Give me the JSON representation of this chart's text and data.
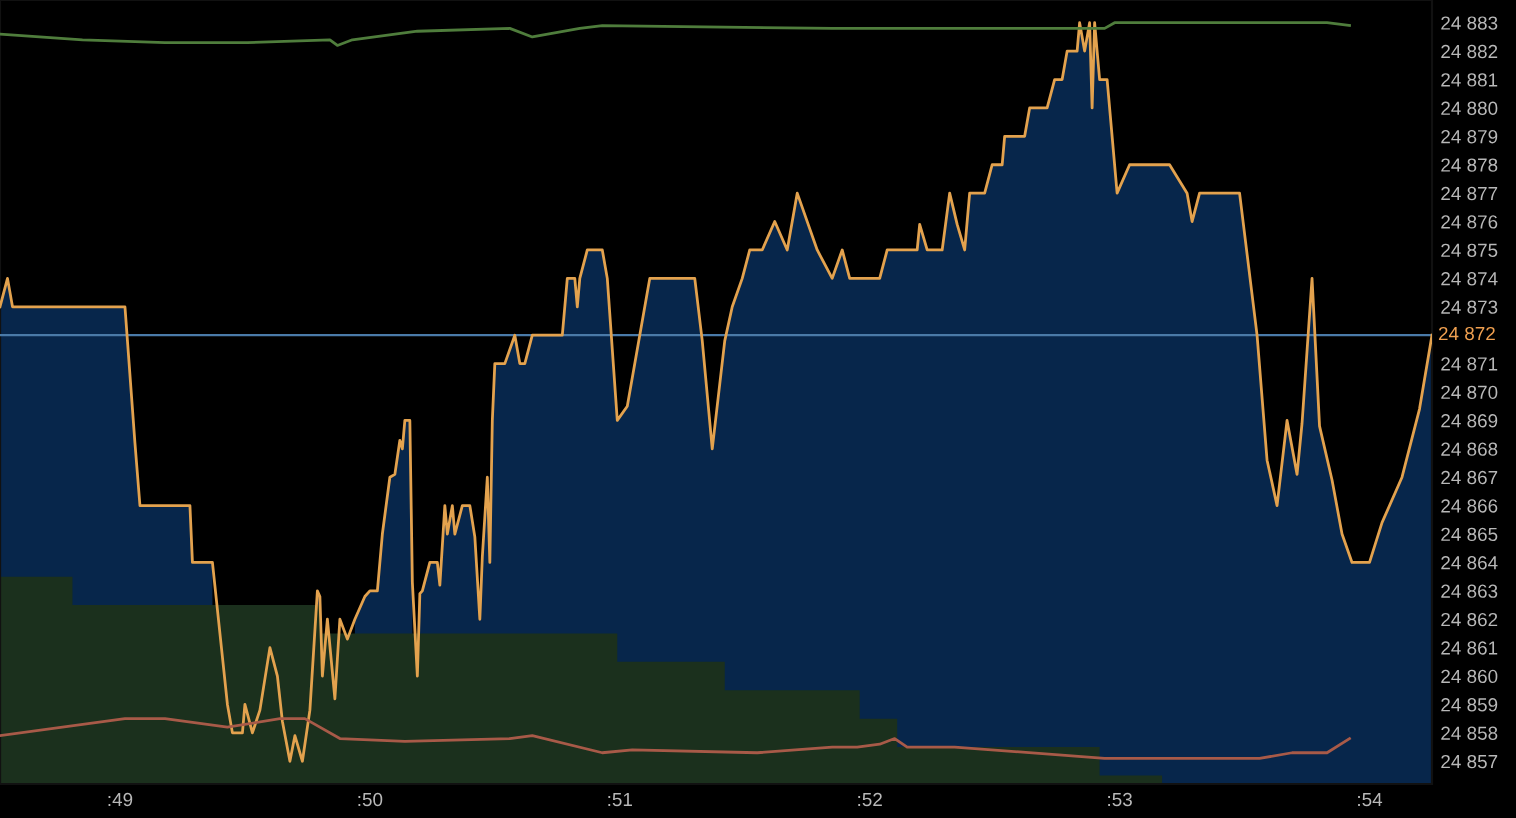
{
  "chart_data": {
    "type": "line",
    "xlim": [
      48.52,
      54.25
    ],
    "xticks": [
      {
        "value": 49,
        "label": ":49"
      },
      {
        "value": 50,
        "label": ":50"
      },
      {
        "value": 51,
        "label": ":51"
      },
      {
        "value": 52,
        "label": ":52"
      },
      {
        "value": 53,
        "label": ":53"
      },
      {
        "value": 54,
        "label": ":54"
      }
    ],
    "ylim": [
      24856.2,
      24883.8
    ],
    "yticks": [
      {
        "value": 24857,
        "label": "24 857"
      },
      {
        "value": 24858,
        "label": "24 858"
      },
      {
        "value": 24859,
        "label": "24 859"
      },
      {
        "value": 24860,
        "label": "24 860"
      },
      {
        "value": 24861,
        "label": "24 861"
      },
      {
        "value": 24862,
        "label": "24 862"
      },
      {
        "value": 24863,
        "label": "24 863"
      },
      {
        "value": 24864,
        "label": "24 864"
      },
      {
        "value": 24865,
        "label": "24 865"
      },
      {
        "value": 24866,
        "label": "24 866"
      },
      {
        "value": 24867,
        "label": "24 867"
      },
      {
        "value": 24868,
        "label": "24 868"
      },
      {
        "value": 24869,
        "label": "24 869"
      },
      {
        "value": 24870,
        "label": "24 870"
      },
      {
        "value": 24871,
        "label": "24 871"
      },
      {
        "value": 24873,
        "label": "24 873"
      },
      {
        "value": 24874,
        "label": "24 874"
      },
      {
        "value": 24875,
        "label": "24 875"
      },
      {
        "value": 24876,
        "label": "24 876"
      },
      {
        "value": 24877,
        "label": "24 877"
      },
      {
        "value": 24878,
        "label": "24 878"
      },
      {
        "value": 24879,
        "label": "24 879"
      },
      {
        "value": 24880,
        "label": "24 880"
      },
      {
        "value": 24881,
        "label": "24 881"
      },
      {
        "value": 24882,
        "label": "24 882"
      },
      {
        "value": 24883,
        "label": "24 883"
      }
    ],
    "grid": false,
    "legend": false,
    "ref_lines": [
      {
        "axis": "y",
        "value": 24872,
        "label": "24 872",
        "color": "#4a7aa8"
      }
    ],
    "series": [
      {
        "type": "area",
        "color": "#07264b",
        "x": [
          48.52,
          48.55,
          48.57,
          49.02,
          49.06,
          49.08,
          49.28,
          49.29,
          49.37,
          49.43,
          49.45,
          49.49,
          49.5,
          49.53,
          49.56,
          49.6,
          49.63,
          49.65,
          49.68,
          49.7,
          49.73,
          49.76,
          49.79,
          49.8,
          49.81,
          49.83,
          49.86,
          49.88,
          49.91,
          49.94,
          49.98,
          50.0,
          50.03,
          50.05,
          50.08,
          50.1,
          50.12,
          50.13,
          50.14,
          50.16,
          50.17,
          50.19,
          50.2,
          50.21,
          50.24,
          50.27,
          50.28,
          50.3,
          50.31,
          50.33,
          50.34,
          50.37,
          50.4,
          50.42,
          50.44,
          50.45,
          50.47,
          50.48,
          50.49,
          50.5,
          50.54,
          50.58,
          50.6,
          50.62,
          50.65,
          50.77,
          50.79,
          50.82,
          50.83,
          50.84,
          50.87,
          50.93,
          50.95,
          50.99,
          51.03,
          51.1,
          51.12,
          51.3,
          51.33,
          51.37,
          51.42,
          51.45,
          51.49,
          51.52,
          51.57,
          51.62,
          51.67,
          51.71,
          51.79,
          51.85,
          51.89,
          51.92,
          52.04,
          52.07,
          52.19,
          52.2,
          52.23,
          52.29,
          52.32,
          52.35,
          52.38,
          52.4,
          52.46,
          52.49,
          52.53,
          52.54,
          52.62,
          52.64,
          52.71,
          52.74,
          52.77,
          52.79,
          52.83,
          52.84,
          52.86,
          52.88,
          52.89,
          52.9,
          52.92,
          52.95,
          52.99,
          53.04,
          53.2,
          53.27,
          53.29,
          53.32,
          53.48,
          53.55,
          53.59,
          53.63,
          53.67,
          53.71,
          53.73,
          53.77,
          53.8,
          53.85,
          53.89,
          53.93,
          54.0,
          54.05,
          54.13,
          54.2,
          54.25
        ],
        "values": [
          24873,
          24874,
          24873,
          24873,
          24868.2,
          24866,
          24866,
          24864,
          24864,
          null,
          null,
          null,
          null,
          null,
          null,
          null,
          null,
          null,
          null,
          null,
          null,
          null,
          24863,
          24862.8,
          null,
          null,
          null,
          null,
          null,
          24862,
          24862.8,
          24863,
          24863,
          24865,
          24867,
          24867.1,
          24868.3,
          24868,
          24869,
          24869,
          24863.3,
          null,
          24862.9,
          24863,
          24864,
          24864,
          24863.2,
          24866,
          24865,
          24866,
          24865,
          24866,
          24866,
          24864.9,
          24862,
          24864.2,
          24867,
          24864,
          24869,
          24871,
          24871,
          24872,
          24871,
          24871,
          24872,
          24872,
          24874,
          24874,
          24873,
          24874,
          24875,
          24875,
          24874,
          24869,
          24869.5,
          24873,
          24874,
          24874,
          24871.8,
          24868,
          24871.8,
          24873,
          24874,
          24875,
          24875,
          24876,
          24875,
          24877,
          24875,
          24874,
          24875,
          24874,
          24874,
          24875,
          24875,
          24875.9,
          24875,
          24875,
          24877,
          24875.9,
          24875,
          24877,
          24877,
          24878,
          24878,
          24879,
          24879,
          24880,
          24880,
          24881,
          24881,
          24882,
          24882,
          24883,
          24882,
          24883,
          24880,
          24883,
          24881,
          24881,
          24877,
          24878,
          24878,
          24877,
          24876,
          24877,
          24877,
          24872,
          24867.6,
          24866,
          24869,
          24867.1,
          24868.9,
          24874,
          24868.8,
          24866.9,
          24865,
          24864,
          24864,
          24865.4,
          24867,
          24869.4,
          24872
        ]
      },
      {
        "type": "area",
        "color": "#1b301d",
        "x": [
          48.52,
          48.81,
          48.81,
          49.8,
          49.8,
          50.99,
          50.99,
          51.42,
          51.42,
          51.96,
          51.96,
          52.11,
          52.11,
          52.92,
          52.92,
          53.17
        ],
        "values": [
          24863.5,
          24863.5,
          24862.5,
          24862.5,
          24861.5,
          24861.5,
          24860.5,
          24860.5,
          24859.5,
          24859.5,
          24858.5,
          24858.5,
          24857.5,
          24857.5,
          24856.5,
          24856.5
        ]
      },
      {
        "color": "#e3a24e",
        "x": [
          48.52,
          48.55,
          48.57,
          49.02,
          49.06,
          49.08,
          49.28,
          49.29,
          49.37,
          49.43,
          49.45,
          49.49,
          49.5,
          49.53,
          49.56,
          49.6,
          49.63,
          49.65,
          49.68,
          49.7,
          49.73,
          49.76,
          49.79,
          49.8,
          49.81,
          49.83,
          49.86,
          49.88,
          49.91,
          49.94,
          49.98,
          50.0,
          50.03,
          50.05,
          50.08,
          50.1,
          50.12,
          50.13,
          50.14,
          50.16,
          50.17,
          50.19,
          50.2,
          50.21,
          50.24,
          50.27,
          50.28,
          50.3,
          50.31,
          50.33,
          50.34,
          50.37,
          50.4,
          50.42,
          50.44,
          50.45,
          50.47,
          50.48,
          50.49,
          50.5,
          50.54,
          50.58,
          50.6,
          50.62,
          50.65,
          50.77,
          50.79,
          50.82,
          50.83,
          50.84,
          50.87,
          50.93,
          50.95,
          50.99,
          51.03,
          51.1,
          51.12,
          51.3,
          51.33,
          51.37,
          51.42,
          51.45,
          51.49,
          51.52,
          51.57,
          51.62,
          51.67,
          51.71,
          51.79,
          51.85,
          51.89,
          51.92,
          52.04,
          52.07,
          52.19,
          52.2,
          52.23,
          52.29,
          52.32,
          52.35,
          52.38,
          52.4,
          52.46,
          52.49,
          52.53,
          52.54,
          52.62,
          52.64,
          52.71,
          52.74,
          52.77,
          52.79,
          52.83,
          52.84,
          52.86,
          52.88,
          52.89,
          52.9,
          52.92,
          52.95,
          52.99,
          53.04,
          53.2,
          53.27,
          53.29,
          53.32,
          53.48,
          53.55,
          53.59,
          53.63,
          53.67,
          53.71,
          53.73,
          53.77,
          53.8,
          53.85,
          53.89,
          53.93,
          54.0,
          54.05,
          54.13,
          54.2,
          54.25
        ],
        "values": [
          24873,
          24874,
          24873,
          24873,
          24868.2,
          24866,
          24866,
          24864,
          24864,
          24859,
          24858,
          24858,
          24859,
          24858,
          24858.8,
          24861,
          24860,
          24858.4,
          24857,
          24857.9,
          24857,
          24858.8,
          24863,
          24862.8,
          24860,
          24862,
          24859.2,
          24862,
          24861.3,
          24862,
          24862.8,
          24863,
          24863,
          24865,
          24867,
          24867.1,
          24868.3,
          24868,
          24869,
          24869,
          24863.3,
          24860,
          24862.9,
          24863,
          24864,
          24864,
          24863.2,
          24866,
          24865,
          24866,
          24865,
          24866,
          24866,
          24864.9,
          24862,
          24864.2,
          24867,
          24864,
          24869,
          24871,
          24871,
          24872,
          24871,
          24871,
          24872,
          24872,
          24874,
          24874,
          24873,
          24874,
          24875,
          24875,
          24874,
          24869,
          24869.5,
          24873,
          24874,
          24874,
          24871.8,
          24868,
          24871.8,
          24873,
          24874,
          24875,
          24875,
          24876,
          24875,
          24877,
          24875,
          24874,
          24875,
          24874,
          24874,
          24875,
          24875,
          24875.9,
          24875,
          24875,
          24877,
          24875.9,
          24875,
          24877,
          24877,
          24878,
          24878,
          24879,
          24879,
          24880,
          24880,
          24881,
          24881,
          24882,
          24882,
          24883,
          24882,
          24883,
          24880,
          24883,
          24881,
          24881,
          24877,
          24878,
          24878,
          24877,
          24876,
          24877,
          24877,
          24872,
          24867.6,
          24866,
          24869,
          24867.1,
          24868.9,
          24874,
          24868.8,
          24866.9,
          24865,
          24864,
          24864,
          24865.4,
          24867,
          24869.4,
          24872
        ]
      },
      {
        "color": "#4f7d3c",
        "x": [
          48.52,
          48.85,
          49.18,
          49.51,
          49.84,
          49.87,
          49.93,
          50.19,
          50.56,
          50.65,
          50.84,
          50.93,
          51.85,
          52.34,
          52.94,
          52.98,
          53.29,
          53.83,
          53.92
        ],
        "values": [
          24882.6,
          24882.4,
          24882.3,
          24882.3,
          24882.4,
          24882.2,
          24882.4,
          24882.7,
          24882.8,
          24882.5,
          24882.8,
          24882.9,
          24882.8,
          24882.8,
          24882.8,
          24883.0,
          24883.0,
          24883.0,
          24882.9
        ]
      },
      {
        "color": "#a85a48",
        "x": [
          48.52,
          49.02,
          49.18,
          49.43,
          49.64,
          49.74,
          49.88,
          50.14,
          50.56,
          50.65,
          50.93,
          51.05,
          51.55,
          51.85,
          51.95,
          52.04,
          52.1,
          52.15,
          52.34,
          52.94,
          53.16,
          53.56,
          53.69,
          53.83,
          53.92
        ],
        "values": [
          24857.9,
          24858.5,
          24858.5,
          24858.2,
          24858.5,
          24858.5,
          24857.8,
          24857.7,
          24857.8,
          24857.9,
          24857.3,
          24857.4,
          24857.3,
          24857.5,
          24857.5,
          24857.6,
          24857.8,
          24857.5,
          24857.5,
          24857.1,
          24857.1,
          24857.1,
          24857.3,
          24857.3,
          24857.8
        ]
      }
    ]
  }
}
